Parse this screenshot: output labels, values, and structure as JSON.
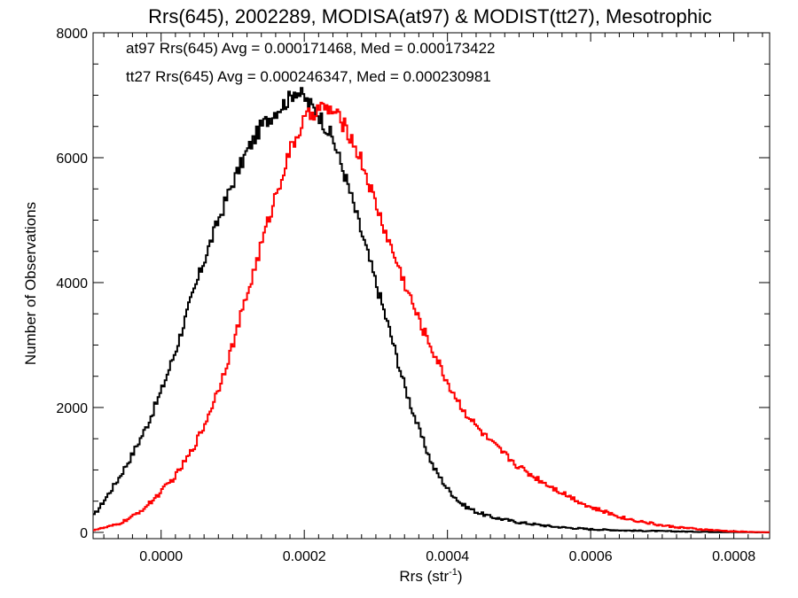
{
  "chart_data": {
    "type": "line",
    "step": true,
    "title": "Rrs(645), 2002289, MODISA(at97) & MODIST(tt27), Mesotrophic",
    "xlabel_main": "Rrs (str",
    "xlabel_sup": "-1",
    "xlabel_tail": ")",
    "ylabel": "Number of Observations",
    "xlim": [
      -9.5e-05,
      0.00085
    ],
    "ylim": [
      -100,
      8000
    ],
    "xticks": [
      0.0,
      0.0002,
      0.0004,
      0.0006,
      0.0008
    ],
    "xtick_labels": [
      "0.0000",
      "0.0002",
      "0.0004",
      "0.0006",
      "0.0008"
    ],
    "yticks": [
      0,
      2000,
      4000,
      6000,
      8000
    ],
    "ytick_labels": [
      "0",
      "2000",
      "4000",
      "6000",
      "8000"
    ],
    "grid": false,
    "legend_placement": "top-left",
    "series": [
      {
        "name": "at97 Rrs(645) Avg = 0.000171468, Med = 0.000173422",
        "color": "#000000",
        "x": [
          -9.5e-05,
          -8e-05,
          -6e-05,
          -4e-05,
          -2e-05,
          0.0,
          2e-05,
          4e-05,
          6e-05,
          8e-05,
          0.0001,
          0.00012,
          0.00014,
          0.00016,
          0.00017,
          0.00018,
          0.000187,
          0.0002,
          0.00022,
          0.00024,
          0.00026,
          0.00028,
          0.0003,
          0.00032,
          0.00034,
          0.00036,
          0.00038,
          0.0004,
          0.00042,
          0.00044,
          0.00046,
          0.0005,
          0.00055,
          0.0006,
          0.00065,
          0.0007,
          0.00075,
          0.0008,
          0.00085
        ],
        "y": [
          250,
          500,
          850,
          1250,
          1700,
          2250,
          2900,
          3650,
          4350,
          5000,
          5600,
          6100,
          6500,
          6750,
          6850,
          6950,
          7100,
          6950,
          6700,
          6300,
          5600,
          4800,
          4000,
          3200,
          2350,
          1650,
          1050,
          700,
          450,
          330,
          250,
          160,
          90,
          50,
          30,
          20,
          10,
          5,
          0
        ]
      },
      {
        "name": "tt27 Rrs(645) Avg = 0.000246347, Med = 0.000230981",
        "color": "#ff0000",
        "x": [
          -9.5e-05,
          -8e-05,
          -6e-05,
          -4e-05,
          -2e-05,
          0.0,
          2e-05,
          4e-05,
          6e-05,
          8e-05,
          0.0001,
          0.00012,
          0.00014,
          0.00016,
          0.00018,
          0.0002,
          0.00022,
          0.00024,
          0.00026,
          0.00028,
          0.0003,
          0.00032,
          0.00034,
          0.00036,
          0.00038,
          0.0004,
          0.00042,
          0.00044,
          0.00046,
          0.00048,
          0.0005,
          0.00052,
          0.00055,
          0.0006,
          0.00065,
          0.0007,
          0.00075,
          0.0008,
          0.00085
        ],
        "y": [
          40,
          70,
          130,
          250,
          420,
          650,
          900,
          1250,
          1700,
          2300,
          3000,
          3800,
          4600,
          5400,
          6100,
          6600,
          6800,
          6750,
          6450,
          5950,
          5250,
          4600,
          4000,
          3400,
          2900,
          2400,
          2000,
          1700,
          1450,
          1250,
          1050,
          900,
          700,
          400,
          220,
          110,
          50,
          15,
          0
        ]
      }
    ]
  }
}
